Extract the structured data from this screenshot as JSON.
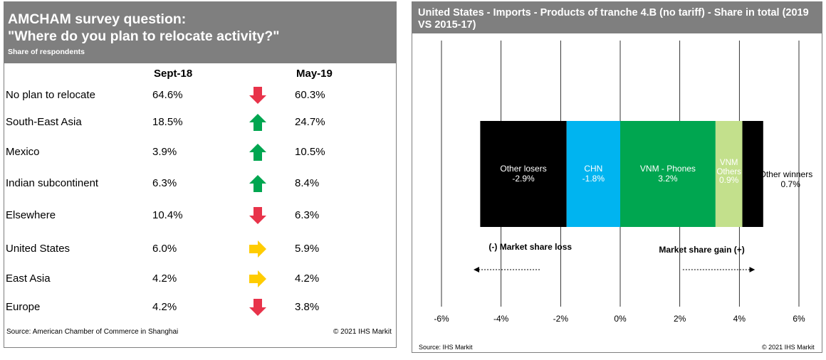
{
  "survey": {
    "title": "AMCHAM  survey question:\n\"Where do you plan to relocate activity?\"",
    "subtitle": "Share of respondents",
    "col1": "Sept-18",
    "col2": "May-19",
    "rows": [
      {
        "label": "No plan to relocate",
        "sept18": "64.6%",
        "may19": "60.3%",
        "trend": "down"
      },
      {
        "label": "South-East Asia",
        "sept18": "18.5%",
        "may19": "24.7%",
        "trend": "up"
      },
      {
        "label": "Mexico",
        "sept18": "3.9%",
        "may19": "10.5%",
        "trend": "up"
      },
      {
        "label": "Indian subcontinent",
        "sept18": "6.3%",
        "may19": "8.4%",
        "trend": "up"
      },
      {
        "label": "Elsewhere",
        "sept18": "10.4%",
        "may19": "6.3%",
        "trend": "down"
      },
      {
        "label": "United States",
        "sept18": "6.0%",
        "may19": "5.9%",
        "trend": "flat"
      },
      {
        "label": "East Asia",
        "sept18": "4.2%",
        "may19": "4.2%",
        "trend": "flat"
      },
      {
        "label": "Europe",
        "sept18": "4.2%",
        "may19": "3.8%",
        "trend": "down"
      }
    ],
    "source": "Source: American Chamber of Commerce in Shanghai",
    "copyright": "© 2021 IHS Markit"
  },
  "colors": {
    "header": "#7f7f7f",
    "down": "#e8334a",
    "up": "#00a650",
    "flat": "#ffcc00"
  },
  "chart_data": {
    "type": "bar",
    "title": "United States - Imports  - Products of tranche 4.B (no tariff)  - Share in total (2019 VS 2015-17)",
    "orientation": "horizontal-stacked",
    "xlim": [
      -6,
      6
    ],
    "xticks": [
      -6,
      -4,
      -2,
      0,
      2,
      4,
      6
    ],
    "xtick_labels": [
      "-6%",
      "-4%",
      "-2%",
      "0%",
      "2%",
      "4%",
      "6%"
    ],
    "grid": true,
    "segments": [
      {
        "name": "Other losers",
        "label": "-2.9%",
        "start": -4.7,
        "end": -1.8,
        "color": "#000000",
        "text_color": "#ffffff"
      },
      {
        "name": "CHN",
        "label": "-1.8%",
        "start": -1.8,
        "end": 0,
        "color": "#00b4f0",
        "text_color": "#ffffff"
      },
      {
        "name": "VNM - Phones",
        "label": "3.2%",
        "start": 0,
        "end": 3.2,
        "color": "#00a650",
        "text_color": "#ffffff"
      },
      {
        "name": "VNM\nOthers",
        "label": "0.9%",
        "start": 3.2,
        "end": 4.1,
        "color": "#c3e08c",
        "text_color": "#ffffff"
      },
      {
        "name": "Other winners",
        "label": "0.7%",
        "start": 4.1,
        "end": 4.8,
        "color": "#000000",
        "text_color": "#000000"
      }
    ],
    "annotations": {
      "loss": "(-) Market share  loss",
      "gain": "Market share gain (+)"
    },
    "source": "Source: IHS Markit",
    "copyright": "© 2021 IHS Markit"
  }
}
